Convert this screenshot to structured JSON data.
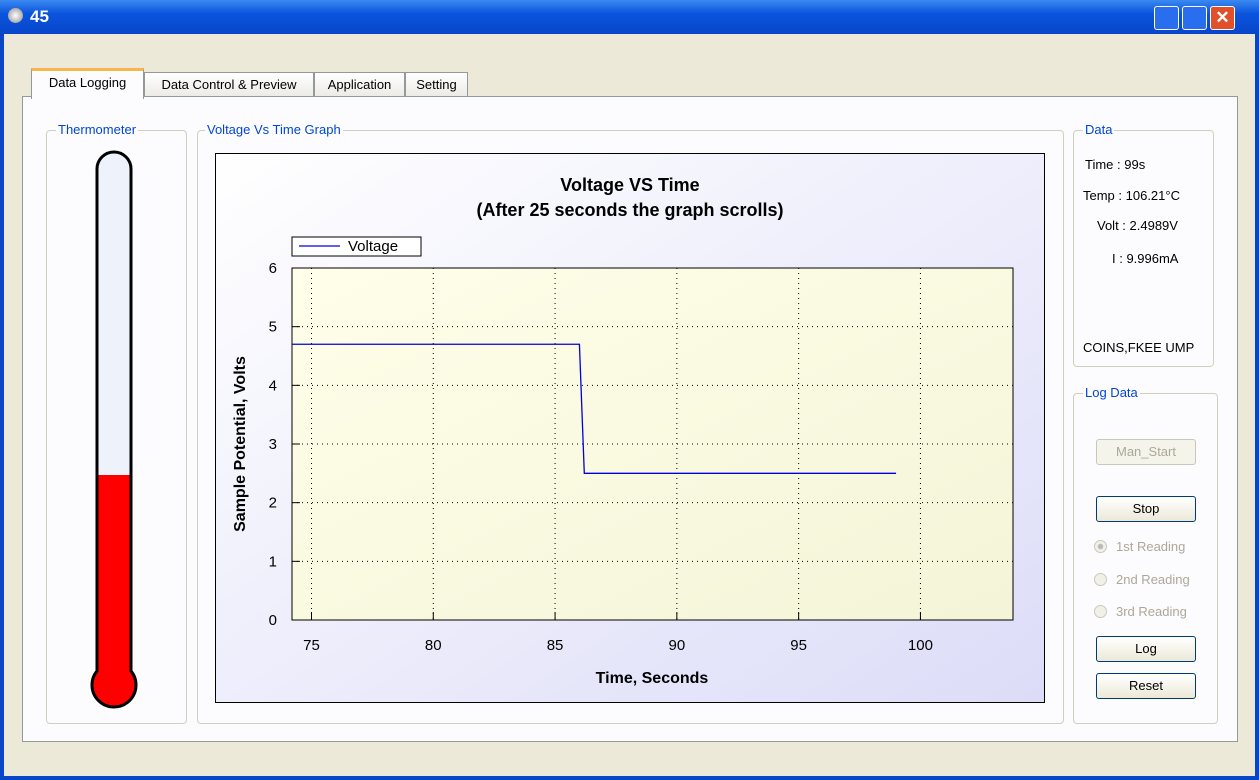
{
  "window": {
    "title": "45"
  },
  "tabs": [
    "Data Logging",
    "Data Control & Preview",
    "Application",
    "Setting"
  ],
  "groups": {
    "thermometer": "Thermometer",
    "graph": "Voltage Vs Time Graph",
    "data": "Data",
    "log": "Log Data"
  },
  "data_panel": {
    "time": "Time : 99s",
    "temp": "Temp : 106.21°C",
    "volt": "Volt : 2.4989V",
    "current": "I : 9.996mA",
    "org": "COINS,FKEE UMP"
  },
  "log_panel": {
    "buttons": [
      "Man_Start",
      "Stop",
      "Log",
      "Reset"
    ],
    "radios": [
      "1st Reading",
      "2nd Reading",
      "3rd Reading"
    ]
  },
  "chart_data": {
    "type": "line",
    "title": "Voltage VS Time",
    "subtitle": "(After 25 seconds the graph scrolls)",
    "x_label": "Time, Seconds",
    "y_label": "Sample Potential, Volts",
    "x": [
      74.2,
      86.0,
      86.1,
      86.2,
      99
    ],
    "series": [
      {
        "name": "Voltage",
        "color": "#0000dd",
        "values": [
          4.7,
          4.7,
          3.6,
          2.5,
          2.5
        ]
      }
    ],
    "xlim": [
      74.2,
      103.8
    ],
    "ylim": [
      0,
      6
    ],
    "xticks": [
      75,
      80,
      85,
      90,
      95,
      100
    ],
    "yticks": [
      0,
      1,
      2,
      3,
      4,
      5,
      6
    ],
    "grid": true,
    "legend": "top-left"
  }
}
